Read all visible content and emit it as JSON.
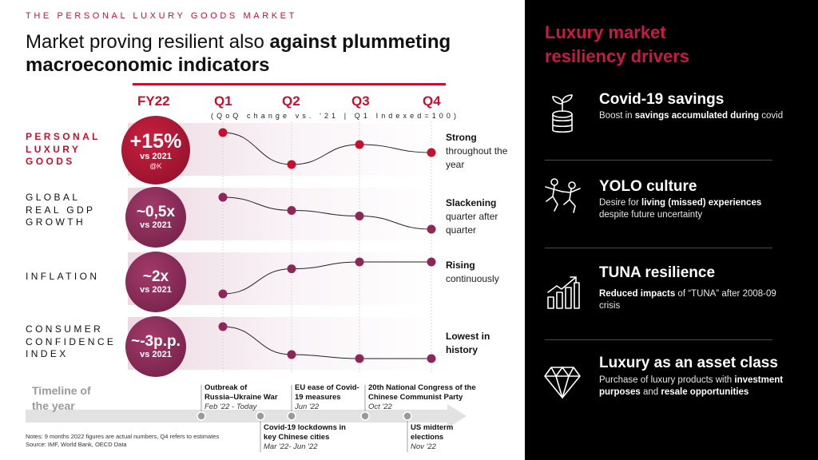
{
  "header": {
    "eyebrow": "THE PERSONAL LUXURY GOODS MARKET",
    "title_regular": "Market proving resilient also ",
    "title_bold_1": "against plummeting",
    "title_bold_2": "macroeconomic indicators"
  },
  "columns": {
    "fy": "FY22",
    "quarters": [
      "Q1",
      "Q2",
      "Q3",
      "Q4"
    ],
    "subhead": "(QoQ change vs. '21 | Q1 Indexed=100)"
  },
  "rows": [
    {
      "label": [
        "PERSONAL",
        "LUXURY",
        "GOODS"
      ],
      "big": "+15%",
      "small": "vs 2021",
      "note": "@K",
      "comment_bold": "Strong",
      "comment_rest": "throughout the year",
      "color": "#c8102e"
    },
    {
      "label": [
        "GLOBAL",
        "REAL GDP",
        "GROWTH"
      ],
      "big": "~0,5x",
      "small": "vs 2021",
      "note": "",
      "comment_bold": "Slackening",
      "comment_rest": "quarter after quarter",
      "color": "#8e2758"
    },
    {
      "label": [
        "INFLATION"
      ],
      "big": "~2x",
      "small": "vs 2021",
      "note": "",
      "comment_bold": "Rising",
      "comment_rest": "continuously",
      "color": "#8e2758"
    },
    {
      "label": [
        "CONSUMER",
        "CONFIDENCE",
        "INDEX"
      ],
      "big": "~-3p.p.",
      "small": "vs 2021",
      "note": "",
      "comment_bold": "Lowest in history",
      "comment_rest": "",
      "color": "#8e2758"
    }
  ],
  "chart_data": {
    "type": "line",
    "categories": [
      "Q1",
      "Q2",
      "Q3",
      "Q4"
    ],
    "series": [
      {
        "name": "PERSONAL LUXURY GOODS",
        "values": [
          100,
          92,
          97,
          95
        ]
      },
      {
        "name": "GLOBAL REAL GDP GROWTH",
        "values": [
          100,
          93,
          90,
          83
        ]
      },
      {
        "name": "INFLATION",
        "values": [
          100,
          129,
          137,
          137
        ]
      },
      {
        "name": "CONSUMER CONFIDENCE INDEX",
        "values": [
          100,
          86,
          84,
          84
        ]
      }
    ],
    "title": "(QoQ change vs. '21 | Q1 Indexed=100)",
    "xlabel": "",
    "ylabel": ""
  },
  "timeline": {
    "label_1": "Timeline of",
    "label_2": "the year",
    "events": [
      {
        "title": [
          "Outbreak of",
          "Russia–Ukraine War"
        ],
        "date": "Feb '22 - Today"
      },
      {
        "title": [
          "Covid-19 lockdowns in",
          "key Chinese cities"
        ],
        "date": "Mar '22- Jun '22"
      },
      {
        "title": [
          "EU ease of Covid-",
          "19 measures"
        ],
        "date": "Jun '22"
      },
      {
        "title": [
          "20th National Congress of the",
          "Chinese Communist Party"
        ],
        "date": "Oct '22"
      },
      {
        "title": [
          "US midterm",
          "elections"
        ],
        "date": "Nov '22"
      }
    ]
  },
  "notes": [
    "Notes: 9 months 2022 figures are actual numbers, Q4 refers to estimates",
    "Source: IMF, World Bank, OECD Data"
  ],
  "panel": {
    "title_1": "Luxury market",
    "title_2": "resiliency drivers",
    "drivers": [
      {
        "icon": "plant-coins-icon",
        "title": "Covid-19 savings",
        "desc": [
          {
            "t": "Boost in ",
            "b": false
          },
          {
            "t": "savings accumulated during",
            "b": true
          },
          {
            "t": " covid",
            "b": false
          }
        ]
      },
      {
        "icon": "people-jumping-icon",
        "title": "YOLO culture",
        "desc": [
          {
            "t": "Desire for ",
            "b": false
          },
          {
            "t": "living (missed) experiences",
            "b": true
          },
          {
            "t": " despite future uncertainty",
            "b": false
          }
        ]
      },
      {
        "icon": "bar-chart-growth-icon",
        "title": "TUNA resilience",
        "desc": [
          {
            "t": "Reduced impacts",
            "b": true
          },
          {
            "t": " of “TUNA” after 2008-09 crisis",
            "b": false
          }
        ]
      },
      {
        "icon": "diamond-icon",
        "title": "Luxury as an asset class",
        "desc": [
          {
            "t": "Purchase of luxury products with ",
            "b": false
          },
          {
            "t": "investment purposes",
            "b": true
          },
          {
            "t": " and ",
            "b": false
          },
          {
            "t": "resale opportunities",
            "b": true
          }
        ]
      }
    ]
  },
  "colors": {
    "accent": "#c8102e",
    "plum": "#8e2758",
    "panel_bg": "#000000",
    "panel_title": "#c51b46"
  }
}
